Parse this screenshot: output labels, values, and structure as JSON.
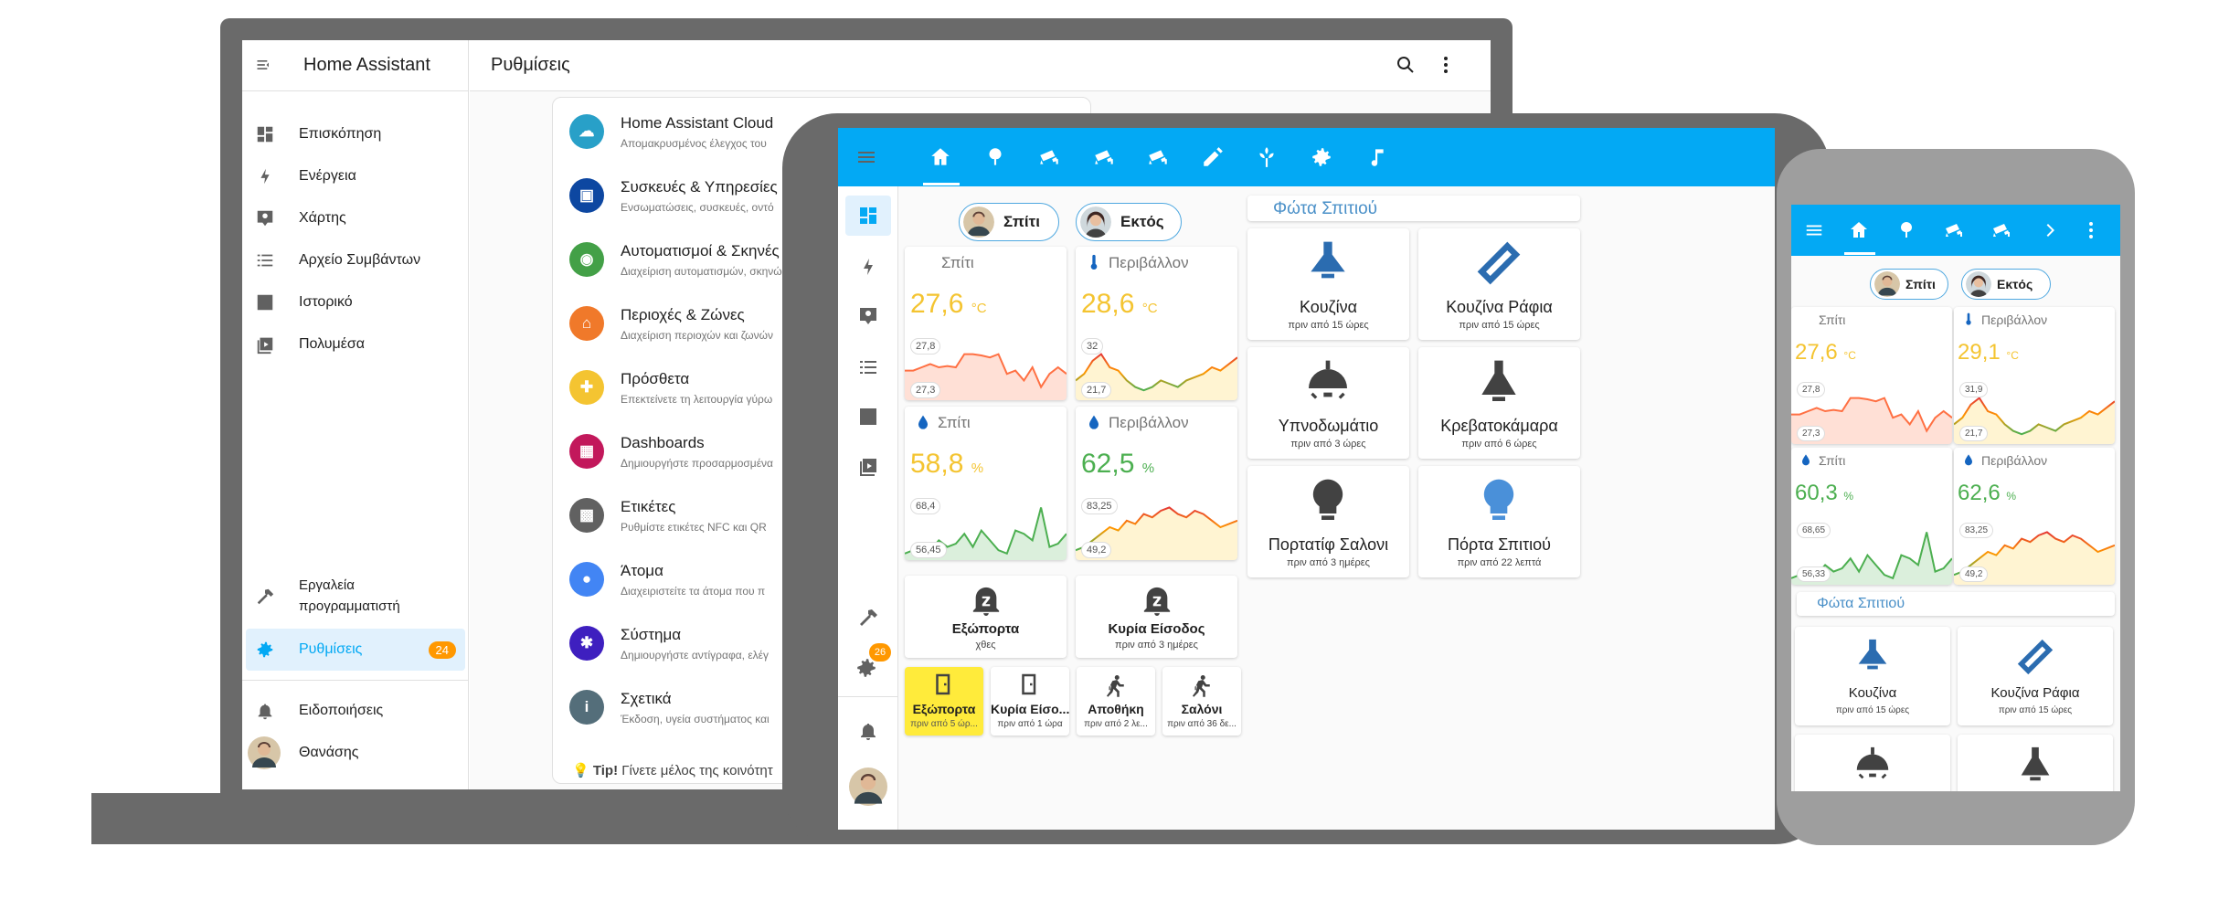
{
  "laptop": {
    "app_title": "Home Assistant",
    "page_title": "Ρυθμίσεις",
    "sidebar": [
      {
        "label": "Επισκόπηση",
        "icon": "dashboard-icon"
      },
      {
        "label": "Ενέργεια",
        "icon": "bolt-icon"
      },
      {
        "label": "Χάρτης",
        "icon": "map-icon"
      },
      {
        "label": "Αρχείο Συμβάντων",
        "icon": "logbook-icon"
      },
      {
        "label": "Ιστορικό",
        "icon": "history-icon"
      },
      {
        "label": "Πολυμέσα",
        "icon": "media-icon"
      }
    ],
    "dev_tools_1": "Εργαλεία",
    "dev_tools_2": "προγραμματιστή",
    "settings_label": "Ρυθμίσεις",
    "settings_badge": "24",
    "notifications_label": "Ειδοποιήσεις",
    "user_label": "Θανάσης",
    "config_items": [
      {
        "title": "Home Assistant Cloud",
        "sub": "Απομακρυσμένος έλεγχος του",
        "color": "#28a0c8"
      },
      {
        "title": "Συσκευές & Υπηρεσίες",
        "sub": "Ενσωματώσεις, συσκευές, οντό",
        "color": "#0d47a1"
      },
      {
        "title": "Αυτοματισμοί & Σκηνές",
        "sub": "Διαχείριση αυτοματισμών, σκηνώ",
        "color": "#43a047"
      },
      {
        "title": "Περιοχές & Ζώνες",
        "sub": "Διαχείριση περιοχών και ζωνών",
        "color": "#f0792a"
      },
      {
        "title": "Πρόσθετα",
        "sub": "Επεκτείνετε τη λειτουργία γύρω",
        "color": "#f4c431"
      },
      {
        "title": "Dashboards",
        "sub": "Δημιουργήστε προσαρμοσμένα",
        "color": "#c2185b"
      },
      {
        "title": "Ετικέτες",
        "sub": "Ρυθμίστε ετικέτες NFC και QR",
        "color": "#616161"
      },
      {
        "title": "Άτομα",
        "sub": "Διαχειριστείτε τα άτομα που π",
        "color": "#4285f4"
      },
      {
        "title": "Σύστημα",
        "sub": "Δημιουργήστε αντίγραφα, ελέγ",
        "color": "#3e1fbf"
      },
      {
        "title": "Σχετικά",
        "sub": "Έκδοση, υγεία συστήματος και",
        "color": "#546e7a"
      }
    ],
    "tip_label": "Tip!",
    "tip_text": "Γίνετε μέλος της κοινότητ"
  },
  "tablet": {
    "tabs": [
      "home-icon",
      "tree-icon",
      "cctv-icon",
      "cctv-icon",
      "cctv-icon",
      "pencil-icon",
      "flower-icon",
      "gear-icon",
      "music-icon"
    ],
    "person_home": "Σπίτι",
    "person_away": "Εκτός",
    "sensors": [
      {
        "label": "Σπίτι",
        "value": "27,6",
        "unit": "°C",
        "max": "27,8",
        "min": "27,3",
        "color": "#f4c431",
        "icon": ""
      },
      {
        "label": "Περιβάλλον",
        "value": "28,6",
        "unit": "°C",
        "max": "32",
        "min": "21,7",
        "color": "#f4c431",
        "icon": "thermometer-icon"
      },
      {
        "label": "Σπίτι",
        "value": "58,8",
        "unit": "%",
        "max": "68,4",
        "min": "56,45",
        "color": "#f4c431",
        "icon": "water-icon"
      },
      {
        "label": "Περιβάλλον",
        "value": "62,5",
        "unit": "%",
        "max": "83,25",
        "min": "49,2",
        "color": "#4caf50",
        "icon": "water-icon"
      }
    ],
    "doors": [
      {
        "name": "Εξώπορτα",
        "sub": "χθες"
      },
      {
        "name": "Κυρία Είσοδος",
        "sub": "πριν από 3 ημέρες"
      }
    ],
    "small_tiles": [
      {
        "name": "Εξώπορτα",
        "sub": "πριν από 5 ώρ..."
      },
      {
        "name": "Κυρία Είσο...",
        "sub": "πριν από 1 ώρα"
      },
      {
        "name": "Αποθήκη",
        "sub": "πριν από 2 λε..."
      },
      {
        "name": "Σαλόνι",
        "sub": "πριν από 36 δε..."
      }
    ],
    "lights_title": "Φώτα Σπιτιού",
    "lights": [
      {
        "name": "Κουζίνα",
        "sub": "πριν από 15 ώρες"
      },
      {
        "name": "Κουζίνα Ράφια",
        "sub": "πριν από 15 ώρες"
      },
      {
        "name": "Υπνοδωμάτιο",
        "sub": "πριν από 3 ώρες"
      },
      {
        "name": "Κρεβατοκάμαρα",
        "sub": "πριν από 6 ώρες"
      },
      {
        "name": "Πορτατίφ Σαλονι",
        "sub": "πριν από 3 ημέρες"
      },
      {
        "name": "Πόρτα Σπιτιού",
        "sub": "πριν από 22 λεπτά"
      }
    ],
    "side_badge": "26"
  },
  "phone": {
    "person_home": "Σπίτι",
    "person_away": "Εκτός",
    "sensors": [
      {
        "label": "Σπίτι",
        "value": "27,6",
        "unit": "°C",
        "max": "27,8",
        "min": "27,3",
        "color": "#f4c431"
      },
      {
        "label": "Περιβάλλον",
        "value": "29,1",
        "unit": "°C",
        "max": "31,9",
        "min": "21,7",
        "color": "#f4c431"
      },
      {
        "label": "Σπίτι",
        "value": "60,3",
        "unit": "%",
        "max": "68,65",
        "min": "56,33",
        "color": "#4caf50"
      },
      {
        "label": "Περιβάλλον",
        "value": "62,6",
        "unit": "%",
        "max": "83,25",
        "min": "49,2",
        "color": "#4caf50"
      }
    ],
    "lights_title": "Φώτα Σπιτιού",
    "lights": [
      {
        "name": "Κουζίνα",
        "sub": "πριν από 15 ώρες"
      },
      {
        "name": "Κουζίνα Ράφια",
        "sub": "πριν από 15 ώρες"
      }
    ]
  }
}
